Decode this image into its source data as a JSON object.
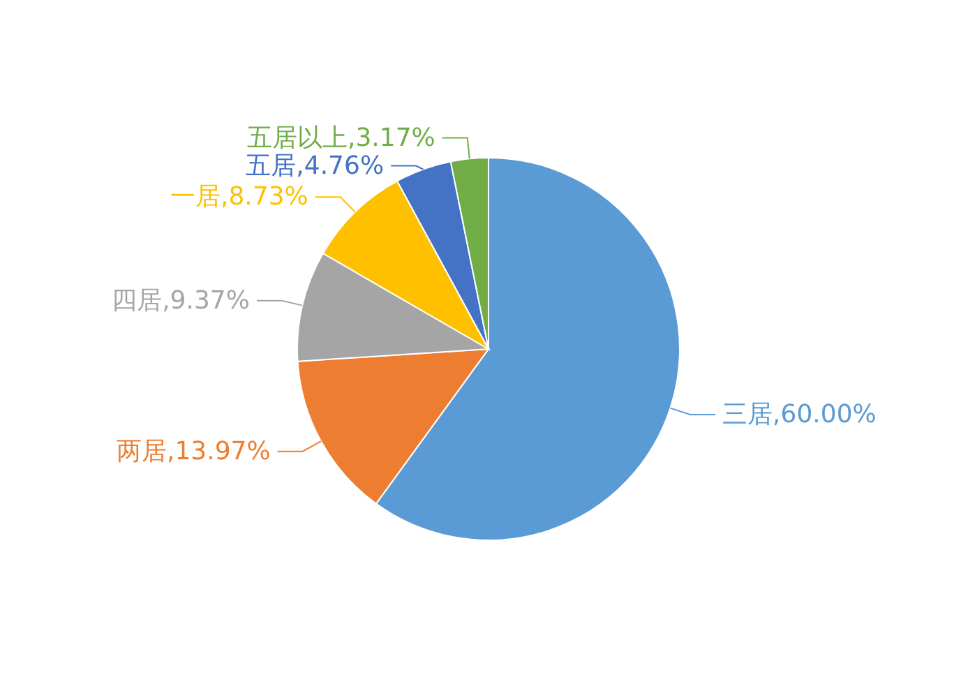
{
  "chart_data": {
    "type": "pie",
    "categories": [
      "三居",
      "两居",
      "四居",
      "一居",
      "五居",
      "五居以上"
    ],
    "values": [
      60.0,
      13.97,
      9.37,
      8.73,
      4.76,
      3.17
    ],
    "value_labels": [
      "60.00%",
      "13.97%",
      "9.37%",
      "8.73%",
      "4.76%",
      "3.17%"
    ],
    "colors": [
      "#5b9bd5",
      "#ed7d31",
      "#a5a5a5",
      "#ffc000",
      "#4472c4",
      "#70ad47"
    ],
    "legend": false
  }
}
